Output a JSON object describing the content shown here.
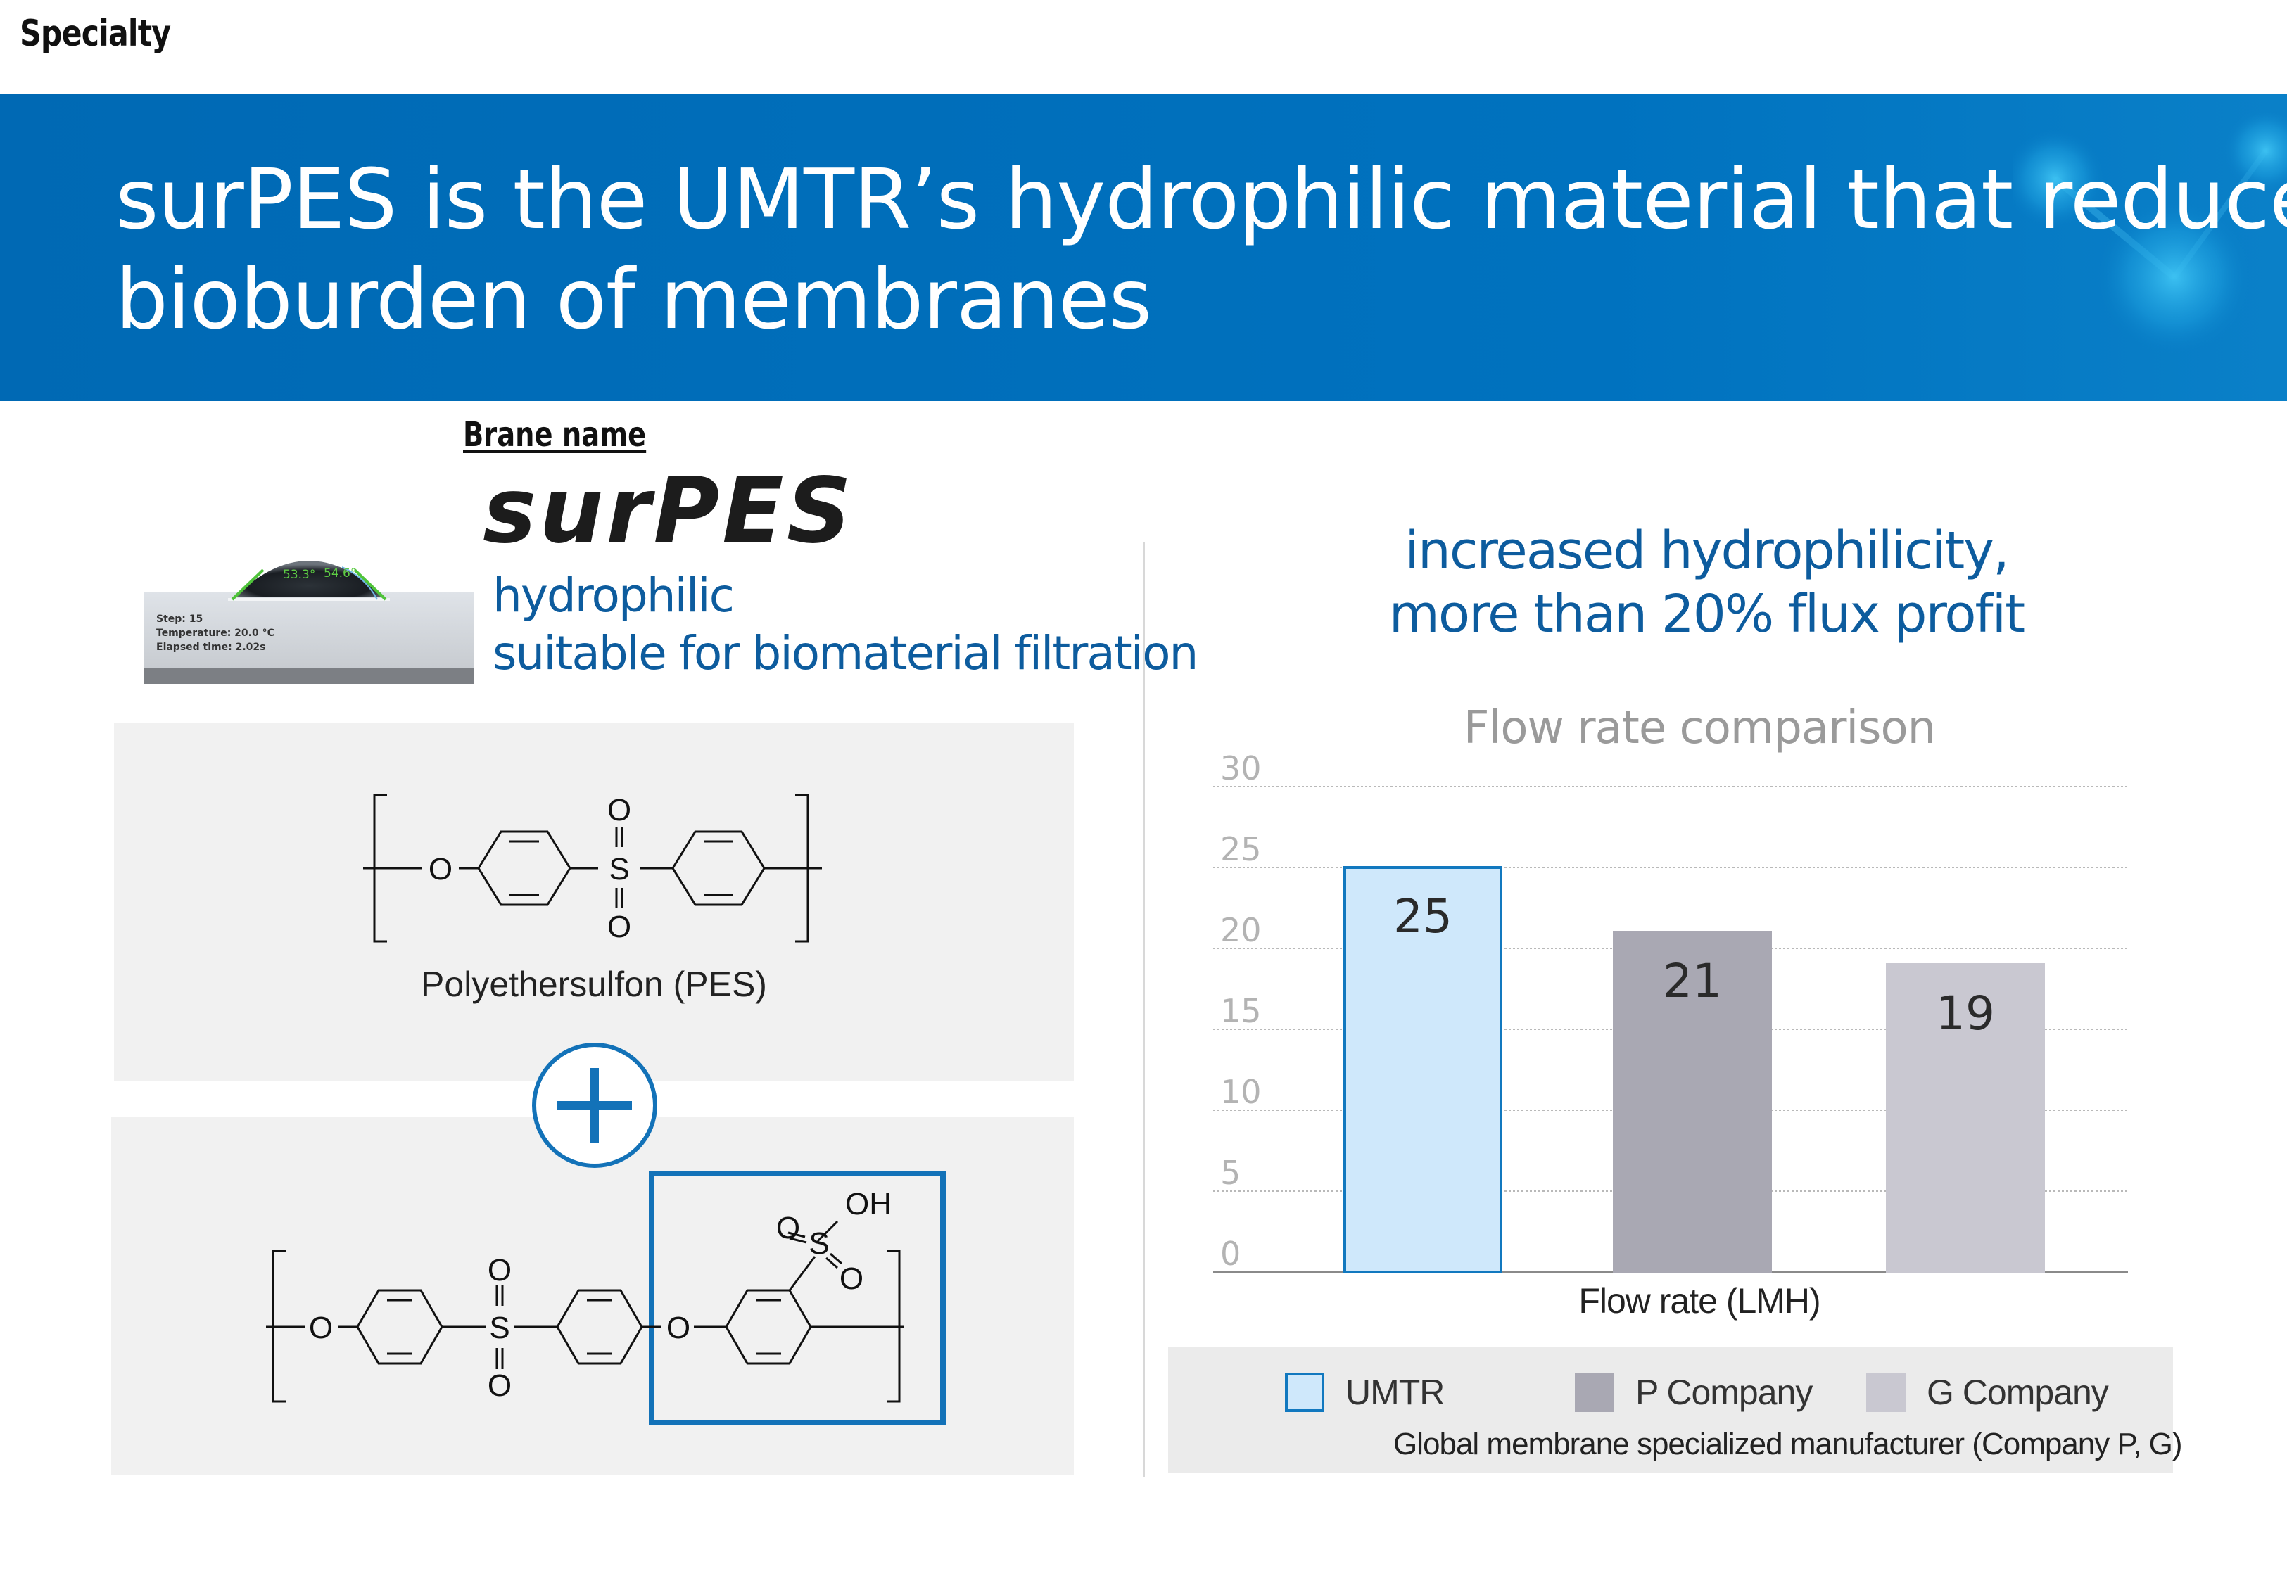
{
  "section_label": "Specialty",
  "headline": {
    "line1": "surPES is the UMTR’s hydrophilic material that reduces",
    "line2": "bioburden of membranes"
  },
  "brand": {
    "label": "Brane name",
    "logo_text": "surPES",
    "photo": {
      "angle_left": "53.3°",
      "angle_right": "54.6°",
      "step": "Step: 15",
      "temperature": "Temperature:  20.0 °C",
      "elapsed": "Elapsed time: 2.02s"
    },
    "desc_line1": "hydrophilic",
    "desc_line2": "suitable for biomaterial filtration"
  },
  "chemistry": {
    "pes_caption": "Polyethersulfon (PES)",
    "atoms": {
      "O": "O",
      "S": "S",
      "OH": "OH"
    },
    "plus_icon": "plus-circle-icon"
  },
  "claim": {
    "line1": "increased hydrophilicity,",
    "line2": "more than 20% flux profit"
  },
  "colors": {
    "brand_blue": "#0072bf",
    "text_blue": "#0d5c9e"
  },
  "chart_data": {
    "type": "bar",
    "title": "Flow rate comparison",
    "xlabel": "Flow rate (LMH)",
    "ylabel": "",
    "categories": [
      "UMTR",
      "P Company",
      "G Company"
    ],
    "values": [
      25,
      21,
      19
    ],
    "data_labels": [
      "25",
      "21",
      "19"
    ],
    "ylim": [
      0,
      30
    ],
    "yticks": [
      "0",
      "5",
      "10",
      "15",
      "20",
      "25",
      "30"
    ],
    "grid": true,
    "bar_colors": [
      "#cfe8fb",
      "#a9a8b3",
      "#c9c8d1"
    ],
    "bar_border_colors": [
      "#1178bf",
      "#a9a8b3",
      "#c9c8d1"
    ],
    "legend": {
      "placement": "bottom",
      "items": [
        "UMTR",
        "P Company",
        "G Company"
      ],
      "note": "Global membrane specialized manufacturer (Company P, G)"
    }
  }
}
